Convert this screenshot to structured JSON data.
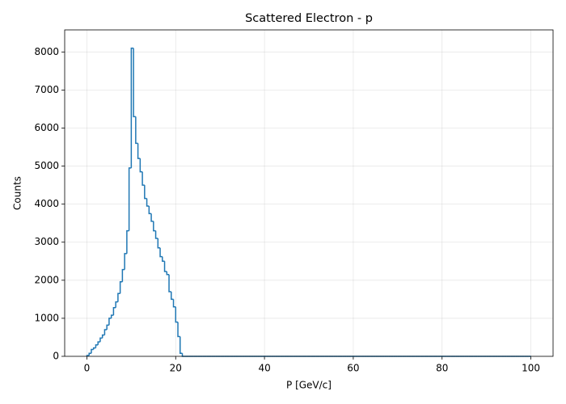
{
  "chart_data": {
    "type": "histogram",
    "title": "Scattered Electron - p",
    "xlabel": "P [GeV/c]",
    "ylabel": "Counts",
    "color": "#1f77b4",
    "grid": true,
    "xlim": [
      -5,
      105
    ],
    "ylim": [
      0,
      8580
    ],
    "xticks": [
      0,
      20,
      40,
      60,
      80,
      100
    ],
    "yticks": [
      0,
      1000,
      2000,
      3000,
      4000,
      5000,
      6000,
      7000,
      8000
    ],
    "bins": [
      0,
      0.5,
      1,
      1.5,
      2,
      2.5,
      3,
      3.5,
      4,
      4.5,
      5,
      5.5,
      6,
      6.5,
      7,
      7.5,
      8,
      8.5,
      9,
      9.5,
      10,
      10.5,
      11,
      11.5,
      12,
      12.5,
      13,
      13.5,
      14,
      14.5,
      15,
      15.5,
      16,
      16.5,
      17,
      17.5,
      18,
      18.5,
      19,
      19.5,
      20,
      20.5,
      21,
      21.5,
      22,
      22.5,
      23,
      23.5,
      24,
      24.5,
      25,
      25.5,
      26,
      26.5,
      27,
      27.5,
      28,
      28.5,
      29,
      29.5,
      30,
      30.5,
      31,
      31.5,
      32,
      32.5,
      33,
      33.5,
      34,
      34.5,
      35,
      35.5,
      36,
      36.5,
      37,
      37.5,
      38,
      38.5,
      39,
      39.5,
      40,
      40.5,
      41,
      41.5,
      42,
      42.5,
      43,
      43.5,
      44,
      44.5,
      45,
      45.5,
      46,
      46.5,
      47,
      47.5,
      48,
      48.5,
      49,
      49.5,
      50,
      50.5,
      51,
      51.5,
      52,
      52.5,
      53,
      53.5,
      54,
      54.5,
      55,
      55.5,
      56,
      56.5,
      57,
      57.5,
      58,
      58.5,
      59,
      59.5,
      60,
      60.5,
      61,
      61.5,
      62,
      62.5,
      63,
      63.5,
      64,
      64.5,
      65,
      65.5,
      66,
      66.5,
      67,
      67.5,
      68,
      68.5,
      69,
      69.5,
      70,
      70.5,
      71,
      71.5,
      72,
      72.5,
      73,
      73.5,
      74,
      74.5,
      75,
      75.5,
      76,
      76.5,
      77,
      77.5,
      78,
      78.5,
      79,
      79.5,
      80,
      80.5,
      81,
      81.5,
      82,
      82.5,
      83,
      83.5,
      84,
      84.5,
      85,
      85.5,
      86,
      86.5,
      87,
      87.5,
      88,
      88.5,
      89,
      89.5,
      90,
      90.5,
      91,
      91.5,
      92,
      92.5,
      93,
      93.5,
      94,
      94.5,
      95,
      95.5,
      96,
      96.5,
      97,
      97.5,
      98,
      98.5,
      99,
      99.5,
      100
    ],
    "values": [
      20,
      80,
      180,
      220,
      300,
      380,
      480,
      560,
      700,
      820,
      1000,
      1080,
      1280,
      1430,
      1650,
      1960,
      2280,
      2700,
      3300,
      4950,
      8100,
      6300,
      5600,
      5200,
      4850,
      4500,
      4150,
      3950,
      3750,
      3550,
      3300,
      3100,
      2850,
      2620,
      2500,
      2230,
      2150,
      1700,
      1500,
      1300,
      900,
      520,
      80,
      0,
      0,
      0,
      0,
      0,
      0,
      0,
      0,
      0,
      0,
      0,
      0,
      0,
      0,
      0,
      0,
      0,
      0,
      0,
      0,
      0,
      0,
      0,
      0,
      0,
      0,
      0,
      0,
      0,
      0,
      0,
      0,
      0,
      0,
      0,
      0,
      0,
      0,
      0,
      0,
      0,
      0,
      0,
      0,
      0,
      0,
      0,
      0,
      0,
      0,
      0,
      0,
      0,
      0,
      0,
      0,
      0,
      0,
      0,
      0,
      0,
      0,
      0,
      0,
      0,
      0,
      0,
      0,
      0,
      0,
      0,
      0,
      0,
      0,
      0,
      0,
      0,
      0,
      0,
      0,
      0,
      0,
      0,
      0,
      0,
      0,
      0,
      0,
      0,
      0,
      0,
      0,
      0,
      0,
      0,
      0,
      0,
      0,
      0,
      0,
      0,
      0,
      0,
      0,
      0,
      0,
      0,
      0,
      0,
      0,
      0,
      0,
      0,
      0,
      0,
      0,
      0,
      0,
      0,
      0,
      0,
      0,
      0,
      0,
      0,
      0,
      0,
      0,
      0,
      0,
      0,
      0,
      0,
      0,
      0,
      0,
      0,
      0,
      0,
      0,
      0,
      0,
      0,
      0,
      0,
      0,
      0,
      0,
      0,
      0,
      0,
      0,
      0,
      0,
      0,
      0,
      0
    ]
  }
}
